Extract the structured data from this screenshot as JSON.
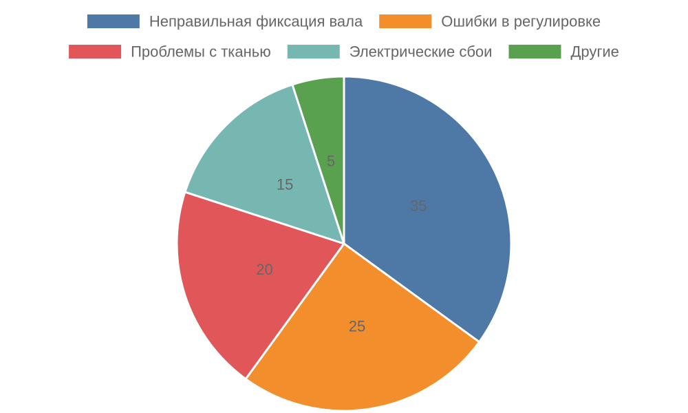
{
  "chart_data": {
    "type": "pie",
    "categories": [
      "Неправильная фиксация вала",
      "Ошибки в регулировке",
      "Проблемы с тканью",
      "Электрические сбои",
      "Другие"
    ],
    "values": [
      35,
      25,
      20,
      15,
      5
    ],
    "colors": [
      "#4e79a7",
      "#f28e2b",
      "#e15759",
      "#76b7b2",
      "#59a14f"
    ],
    "slice_border_color": "#ffffff",
    "show_values": true,
    "start_angle": "top",
    "direction": "clockwise",
    "legend_position": "top"
  }
}
